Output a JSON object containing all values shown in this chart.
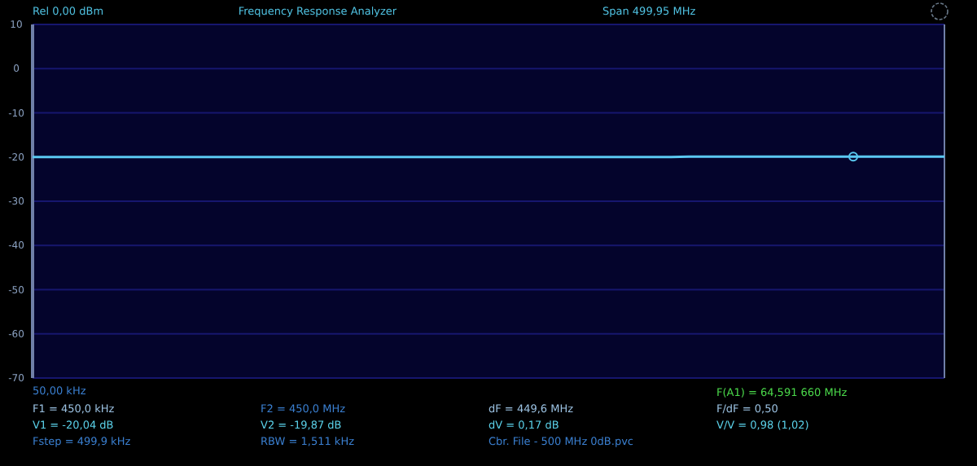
{
  "chart_data": {
    "type": "line",
    "title": "Frequency Response Analyzer",
    "subtitle": "Rel  0,00 dBm",
    "annotations": [
      "Span 499,95 MHz",
      "50,00 kHz",
      "F(A1) = 64,591 660 MHz",
      "F1 = 450,0 kHz",
      "F2 = 450,0 MHz",
      "dF = 449,6 MHz",
      "F/dF = 0,50",
      "V1 = -20,04 dB",
      "V2 = -19,87 dB",
      "dV = 0,17 dB",
      "V/V = 0,98 (1,02)",
      "Fstep = 499,9 kHz",
      "RBW = 1,511 kHz",
      "Cbr. File - 500 MHz 0dB.pvc"
    ],
    "categories": [
      null,
      null,
      null,
      null,
      null,
      null,
      null,
      null,
      null,
      null,
      null,
      null,
      null,
      null,
      null,
      null,
      null,
      null,
      null,
      null,
      null,
      null,
      null,
      null,
      null,
      null,
      null,
      null,
      null,
      null,
      null,
      null,
      null,
      null,
      null,
      null,
      null,
      null,
      null,
      null,
      null,
      null,
      null,
      null,
      null,
      null,
      null,
      null,
      null,
      null,
      null
    ],
    "series": [
      {
        "color": "#5ac8f0",
        "values": [
          -20,
          -20,
          -20,
          -20,
          -20,
          -20,
          -20,
          -20,
          -20,
          -20,
          -20,
          -20,
          -20,
          -20,
          -20,
          -20,
          -20,
          -20,
          -20,
          -20,
          -20,
          -20,
          -20,
          -20,
          -20,
          -20,
          -20,
          -20,
          -20,
          -20,
          -20,
          -20,
          -20,
          -20,
          -20,
          -20,
          -19.9,
          -19.9,
          -19.9,
          -19.9,
          -19.9,
          -19.9,
          -19.9,
          -19.9,
          -19.9,
          -19.9,
          -19.9,
          -19.9,
          -19.9,
          -19.9,
          -19.9
        ]
      },
      {
        "type": "scatter",
        "color": "#5ac8f0",
        "marker": "circle",
        "values": [
          null,
          null,
          null,
          null,
          null,
          null,
          null,
          null,
          null,
          null,
          null,
          null,
          null,
          null,
          null,
          null,
          null,
          null,
          null,
          null,
          null,
          null,
          null,
          null,
          null,
          null,
          null,
          null,
          null,
          null,
          null,
          null,
          null,
          null,
          null,
          null,
          null,
          null,
          null,
          null,
          null,
          null,
          null,
          null,
          null,
          -19.9,
          null,
          null,
          null,
          null,
          null
        ]
      }
    ],
    "ylim": [
      -70,
      10
    ],
    "yticks": [
      10,
      0,
      -10,
      -20,
      -30,
      -40,
      -50,
      -60,
      -70
    ],
    "grid": "y"
  }
}
